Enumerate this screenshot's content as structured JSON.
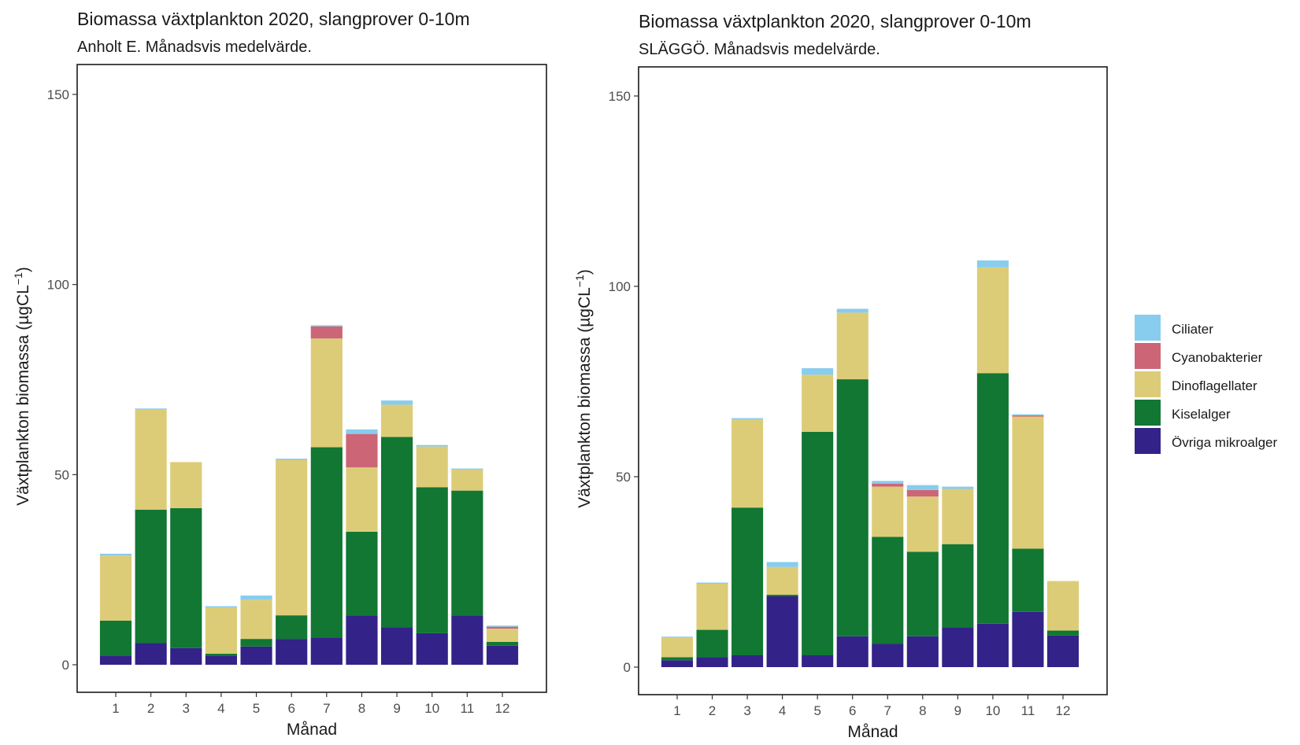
{
  "chart_data": [
    {
      "type": "bar",
      "stacked": true,
      "title": "Biomassa växtplankton 2020, slangprover 0-10m",
      "subtitle": "Anholt E. Månadsvis medelvärde.",
      "xlabel": "Månad",
      "ylabel": "Växtplankton biomassa (µgCL",
      "ylabel_sup": "−1",
      "ylabel_end": ")",
      "ylim": [
        -5,
        157
      ],
      "yticks": [
        0,
        50,
        100,
        150
      ],
      "grid": false,
      "categories": [
        "1",
        "2",
        "3",
        "4",
        "5",
        "6",
        "7",
        "8",
        "9",
        "10",
        "11",
        "12"
      ],
      "series": [
        {
          "name": "Övriga mikroalger",
          "color": "#332288",
          "values": [
            2.4,
            5.7,
            4.4,
            2.4,
            4.8,
            6.8,
            7.2,
            13.0,
            9.9,
            8.3,
            13.0,
            5.0
          ]
        },
        {
          "name": "Kiselalger",
          "color": "#117733",
          "values": [
            9.2,
            35.1,
            36.8,
            0.5,
            2.0,
            6.2,
            50.0,
            22.0,
            50.0,
            38.4,
            32.8,
            1.0
          ]
        },
        {
          "name": "Dinoflagellater",
          "color": "#DDCC77",
          "values": [
            17.1,
            26.3,
            12.1,
            12.2,
            10.3,
            40.9,
            28.6,
            16.9,
            8.5,
            10.7,
            5.5,
            3.5
          ]
        },
        {
          "name": "Cyanobakterier",
          "color": "#CC6677",
          "values": [
            0,
            0,
            0,
            0,
            0,
            0,
            3.2,
            8.8,
            0,
            0,
            0,
            0.5
          ]
        },
        {
          "name": "Ciliater",
          "color": "#88CCEE",
          "values": [
            0.5,
            0.3,
            0,
            0.3,
            1.1,
            0.3,
            0.3,
            1.2,
            1.1,
            0.4,
            0.3,
            0.3
          ]
        }
      ]
    },
    {
      "type": "bar",
      "stacked": true,
      "title": "Biomassa växtplankton 2020, slangprover 0-10m",
      "subtitle": "SLÄGGÖ. Månadsvis medelvärde.",
      "xlabel": "Månad",
      "ylabel": "Växtplankton biomassa (µgCL",
      "ylabel_sup": "−1",
      "ylabel_end": ")",
      "ylim": [
        -5,
        157
      ],
      "yticks": [
        0,
        50,
        100,
        150
      ],
      "grid": false,
      "categories": [
        "1",
        "2",
        "3",
        "4",
        "5",
        "6",
        "7",
        "8",
        "9",
        "10",
        "11",
        "12"
      ],
      "series": [
        {
          "name": "Övriga mikroalger",
          "color": "#332288",
          "values": [
            1.8,
            2.6,
            3.1,
            18.6,
            3.1,
            8.1,
            6.1,
            8.1,
            10.5,
            11.4,
            14.5,
            8.3
          ]
        },
        {
          "name": "Kiselalger",
          "color": "#117733",
          "values": [
            0.8,
            7.2,
            38.8,
            0.4,
            58.7,
            67.5,
            28.1,
            22.2,
            21.8,
            65.8,
            16.6,
            1.3
          ]
        },
        {
          "name": "Dinoflagellater",
          "color": "#DDCC77",
          "values": [
            5.1,
            12.1,
            23.2,
            7.3,
            15.0,
            17.5,
            13.2,
            14.5,
            14.5,
            27.8,
            34.7,
            13.0
          ]
        },
        {
          "name": "Cyanobakterier",
          "color": "#CC6677",
          "values": [
            0,
            0,
            0,
            0,
            0,
            0,
            0.8,
            1.7,
            0,
            0,
            0.3,
            0
          ]
        },
        {
          "name": "Ciliater",
          "color": "#88CCEE",
          "values": [
            0.3,
            0.3,
            0.3,
            1.3,
            1.7,
            1.0,
            0.7,
            1.3,
            0.6,
            1.8,
            0.3,
            0
          ]
        }
      ]
    }
  ],
  "legend": {
    "position": "right",
    "items": [
      {
        "label": "Ciliater",
        "color": "#88CCEE"
      },
      {
        "label": "Cyanobakterier",
        "color": "#CC6677"
      },
      {
        "label": "Dinoflagellater",
        "color": "#DDCC77"
      },
      {
        "label": "Kiselalger",
        "color": "#117733"
      },
      {
        "label": "Övriga mikroalger",
        "color": "#332288"
      }
    ]
  }
}
